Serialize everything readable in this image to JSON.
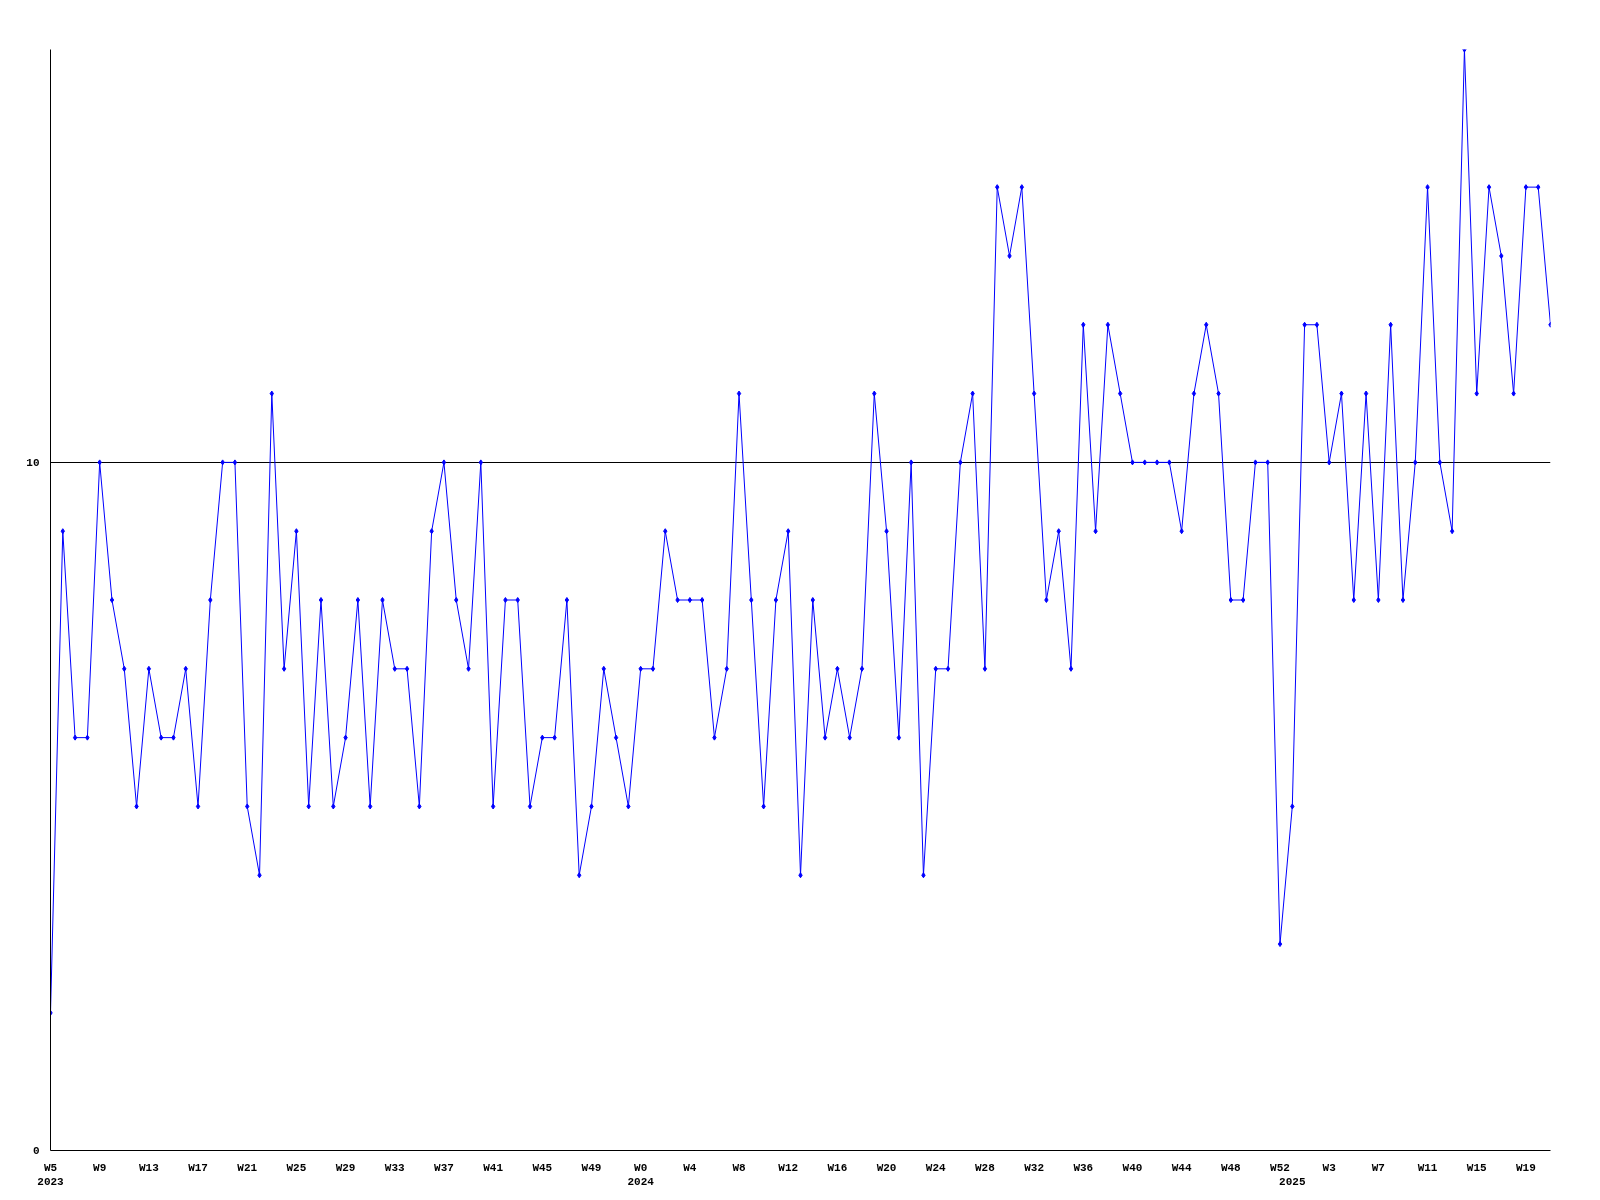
{
  "chart_data": {
    "type": "line",
    "categories": [
      "W5\n2023",
      null,
      null,
      null,
      "W9",
      null,
      null,
      null,
      "W13",
      null,
      null,
      null,
      "W17",
      null,
      null,
      null,
      "W21",
      null,
      null,
      null,
      "W25",
      null,
      null,
      null,
      "W29",
      null,
      null,
      null,
      "W33",
      null,
      null,
      null,
      "W37",
      null,
      null,
      null,
      "W41",
      null,
      null,
      null,
      "W45",
      null,
      null,
      null,
      "W49",
      null,
      null,
      null,
      "W0\n2024",
      null,
      null,
      null,
      "W4",
      null,
      null,
      null,
      "W8",
      null,
      null,
      null,
      "W12",
      null,
      null,
      null,
      "W16",
      null,
      null,
      null,
      "W20",
      null,
      null,
      null,
      "W24",
      null,
      null,
      null,
      "W28",
      null,
      null,
      null,
      "W32",
      null,
      null,
      null,
      "W36",
      null,
      null,
      null,
      "W40",
      null,
      null,
      null,
      "W44",
      null,
      null,
      null,
      "W48",
      null,
      null,
      null,
      "W52",
      "\n2025",
      null,
      null,
      "W3",
      null,
      null,
      null,
      "W7",
      null,
      null,
      null,
      "W11",
      null,
      null,
      null,
      "W15",
      null,
      null,
      null,
      "W19",
      null,
      null
    ],
    "series": [
      {
        "color": "#0000ff",
        "values": [
          2,
          9,
          6,
          6,
          10,
          8,
          7,
          5,
          7,
          6,
          6,
          7,
          5,
          8,
          10,
          10,
          5,
          4,
          11,
          7,
          9,
          5,
          8,
          5,
          6,
          8,
          5,
          8,
          7,
          7,
          5,
          9,
          10,
          8,
          7,
          10,
          5,
          8,
          8,
          5,
          6,
          6,
          8,
          4,
          5,
          7,
          6,
          5,
          7,
          7,
          9,
          8,
          8,
          8,
          6,
          7,
          11,
          8,
          5,
          8,
          9,
          4,
          8,
          6,
          7,
          6,
          7,
          11,
          9,
          6,
          10,
          4,
          7,
          7,
          10,
          11,
          7,
          14,
          13,
          14,
          11,
          8,
          9,
          7,
          12,
          9,
          12,
          11,
          10,
          10,
          10,
          10,
          9,
          11,
          12,
          11,
          8,
          8,
          10,
          10,
          3,
          5,
          12,
          12,
          10,
          11,
          8,
          11,
          8,
          12,
          8,
          10,
          14,
          10,
          9,
          16,
          11,
          14,
          13,
          11,
          14,
          14,
          12
        ]
      }
    ],
    "ylim": [
      0,
      16
    ],
    "yticks": [
      0,
      10
    ],
    "grid": "y",
    "marker": "diamond",
    "line_style": "solid"
  }
}
